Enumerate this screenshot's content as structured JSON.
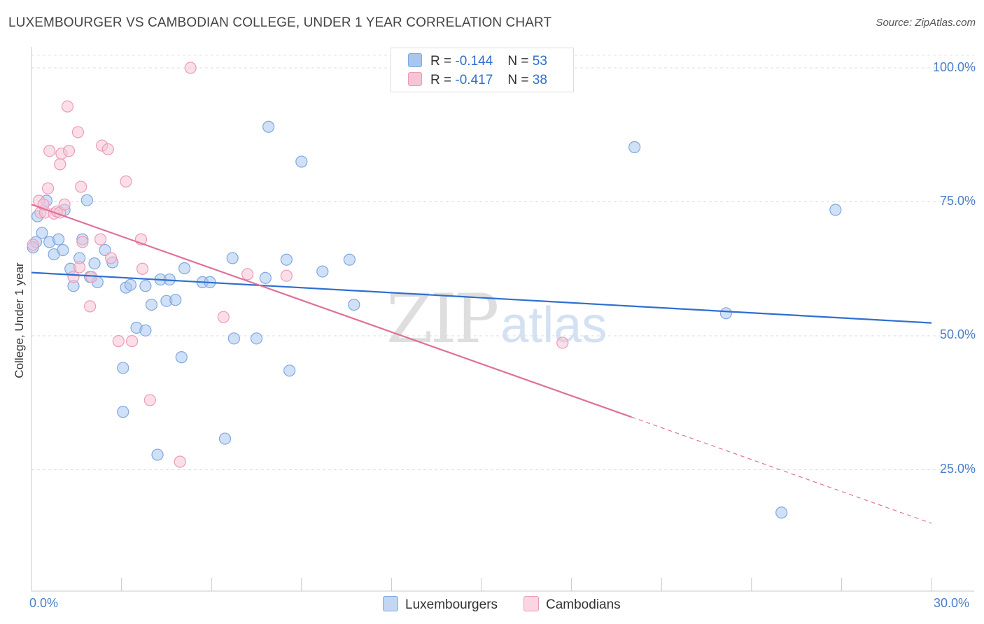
{
  "chart_data": {
    "type": "scatter",
    "title": "LUXEMBOURGER VS CAMBODIAN COLLEGE, UNDER 1 YEAR CORRELATION CHART",
    "source": "Source: ZipAtlas.com",
    "xlabel": "",
    "ylabel": "College, Under 1 year",
    "xlim": [
      0,
      30
    ],
    "ylim": [
      0,
      105
    ],
    "x_tick_labels": [
      "0.0%",
      "30.0%"
    ],
    "y_ticks": [
      25,
      50,
      75,
      100
    ],
    "y_tick_labels": [
      "25.0%",
      "50.0%",
      "75.0%",
      "100.0%"
    ],
    "grid": true,
    "legend": {
      "position": "top-center",
      "entries": [
        {
          "r_label": "R =",
          "r_value": "-0.144",
          "n_label": "N =",
          "n_value": "53"
        },
        {
          "r_label": "R =",
          "r_value": "-0.417",
          "n_label": "N =",
          "n_value": "38"
        }
      ]
    },
    "watermark": {
      "part1": "ZIP",
      "part2": "atlas"
    },
    "series": [
      {
        "name": "Luxembourgers",
        "color": "#7fa8e0",
        "fill": "#a9c6ee",
        "line_color": "#2e6fd1",
        "trend": {
          "x0": 0,
          "y0": 61.8,
          "x1": 30,
          "y1": 52.4,
          "solid_until": 30
        },
        "points": [
          [
            0.15,
            67.5
          ],
          [
            0.35,
            69.2
          ],
          [
            0.2,
            72.3
          ],
          [
            0.5,
            75.2
          ],
          [
            0.6,
            67.5
          ],
          [
            0.75,
            65.2
          ],
          [
            0.9,
            68.0
          ],
          [
            1.05,
            66.0
          ],
          [
            1.1,
            73.5
          ],
          [
            1.3,
            62.5
          ],
          [
            1.4,
            59.3
          ],
          [
            1.6,
            64.5
          ],
          [
            1.7,
            68.0
          ],
          [
            1.85,
            75.3
          ],
          [
            1.95,
            61.0
          ],
          [
            2.1,
            63.5
          ],
          [
            2.2,
            60.0
          ],
          [
            2.45,
            66.0
          ],
          [
            2.7,
            63.7
          ],
          [
            3.05,
            44.0
          ],
          [
            3.05,
            35.8
          ],
          [
            3.15,
            59.0
          ],
          [
            3.3,
            59.5
          ],
          [
            3.5,
            51.5
          ],
          [
            3.8,
            51.0
          ],
          [
            3.8,
            59.3
          ],
          [
            4.0,
            55.8
          ],
          [
            4.2,
            27.8
          ],
          [
            4.3,
            60.5
          ],
          [
            4.5,
            56.5
          ],
          [
            4.6,
            60.5
          ],
          [
            4.8,
            56.7
          ],
          [
            5.0,
            46.0
          ],
          [
            5.1,
            62.6
          ],
          [
            5.7,
            60.0
          ],
          [
            5.95,
            60.0
          ],
          [
            6.45,
            30.8
          ],
          [
            6.7,
            64.5
          ],
          [
            6.75,
            49.5
          ],
          [
            7.5,
            49.5
          ],
          [
            7.8,
            60.8
          ],
          [
            7.9,
            89.0
          ],
          [
            8.5,
            64.2
          ],
          [
            8.6,
            43.5
          ],
          [
            9.0,
            82.5
          ],
          [
            9.7,
            62.0
          ],
          [
            10.6,
            64.2
          ],
          [
            10.75,
            55.8
          ],
          [
            20.1,
            85.2
          ],
          [
            23.15,
            54.2
          ],
          [
            25.0,
            17.0
          ],
          [
            26.8,
            73.5
          ],
          [
            0.05,
            66.5
          ]
        ]
      },
      {
        "name": "Cambodians",
        "color": "#ee9ab6",
        "fill": "#f6c4d5",
        "line_color": "#e0709a",
        "trend": {
          "x0": 0,
          "y0": 74.5,
          "x1": 30,
          "y1": 15.0,
          "solid_until": 20.0
        },
        "points": [
          [
            0.05,
            67.0
          ],
          [
            0.25,
            75.2
          ],
          [
            0.3,
            73.0
          ],
          [
            0.45,
            73.0
          ],
          [
            0.55,
            77.5
          ],
          [
            0.6,
            84.5
          ],
          [
            0.75,
            72.8
          ],
          [
            0.85,
            73.2
          ],
          [
            0.95,
            73.0
          ],
          [
            0.95,
            82.0
          ],
          [
            1.0,
            84.0
          ],
          [
            1.1,
            74.5
          ],
          [
            1.2,
            92.8
          ],
          [
            1.25,
            84.5
          ],
          [
            1.4,
            61.0
          ],
          [
            1.55,
            88.0
          ],
          [
            1.6,
            62.8
          ],
          [
            1.65,
            77.8
          ],
          [
            1.7,
            67.5
          ],
          [
            1.95,
            55.5
          ],
          [
            2.0,
            61.0
          ],
          [
            2.3,
            68.0
          ],
          [
            2.35,
            85.5
          ],
          [
            2.55,
            84.8
          ],
          [
            2.65,
            64.5
          ],
          [
            2.9,
            49.0
          ],
          [
            3.15,
            78.8
          ],
          [
            3.35,
            49.0
          ],
          [
            3.7,
            62.5
          ],
          [
            3.65,
            68.0
          ],
          [
            3.95,
            38.0
          ],
          [
            4.95,
            26.5
          ],
          [
            5.3,
            100.0
          ],
          [
            6.4,
            53.5
          ],
          [
            7.2,
            61.5
          ],
          [
            8.5,
            61.2
          ],
          [
            17.7,
            48.7
          ],
          [
            0.4,
            74.5
          ]
        ]
      }
    ]
  }
}
